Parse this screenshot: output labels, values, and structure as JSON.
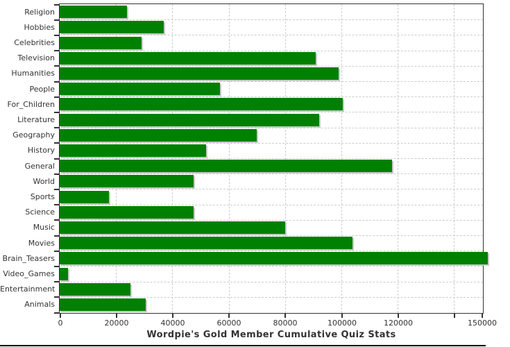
{
  "chart_data": {
    "type": "bar",
    "orientation": "horizontal",
    "title": "Wordpie's Gold Member Cumulative Quiz Stats",
    "xlabel": "",
    "ylabel": "",
    "categories": [
      "Religion",
      "Hobbies",
      "Celebrities",
      "Television",
      "Humanities",
      "People",
      "For_Children",
      "Literature",
      "Geography",
      "History",
      "General",
      "World",
      "Sports",
      "Science",
      "Music",
      "Movies",
      "Brain_Teasers",
      "Video_Games",
      "Entertainment",
      "Animals"
    ],
    "values": [
      24000,
      37000,
      29000,
      91000,
      99000,
      57000,
      100500,
      92000,
      70000,
      52000,
      118000,
      47500,
      17500,
      47500,
      80000,
      104000,
      152000,
      3000,
      25000,
      30500
    ],
    "xlim": [
      0,
      150000
    ],
    "x_ticks": [
      {
        "value": 0,
        "label": "0"
      },
      {
        "value": 20000,
        "label": "20000"
      },
      {
        "value": 40000,
        "label": "40000"
      },
      {
        "value": 60000,
        "label": "60000"
      },
      {
        "value": 80000,
        "label": "80000"
      },
      {
        "value": 100000,
        "label": "100000"
      },
      {
        "value": 120000,
        "label": "120000"
      },
      {
        "value": 140000,
        "label": ""
      },
      {
        "value": 150000,
        "label": "150000"
      }
    ],
    "grid": "dashed",
    "legend": "none",
    "colors": {
      "bar": "#008000",
      "bar_shadow": "#c9c9c9",
      "gridline": "#cccccc",
      "axis": "#333333",
      "text": "#333333",
      "background": "#ffffff",
      "bottom_rule": "#000000"
    }
  }
}
